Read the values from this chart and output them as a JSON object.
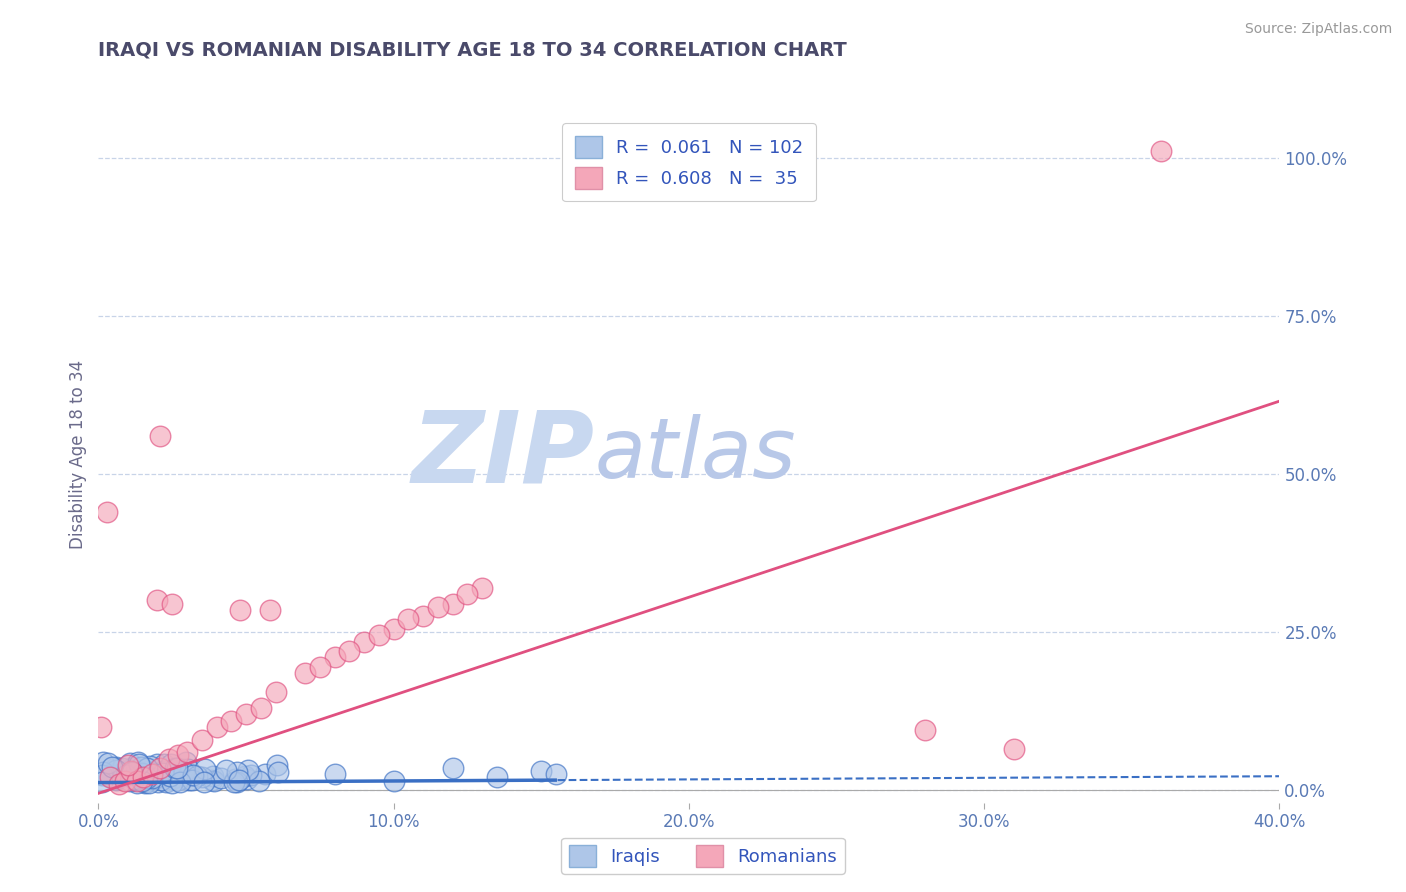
{
  "title": "IRAQI VS ROMANIAN DISABILITY AGE 18 TO 34 CORRELATION CHART",
  "source": "Source: ZipAtlas.com",
  "ylabel": "Disability Age 18 to 34",
  "xlim": [
    0.0,
    0.4
  ],
  "ylim": [
    -0.02,
    1.08
  ],
  "xticks": [
    0.0,
    0.1,
    0.2,
    0.3,
    0.4
  ],
  "xtick_labels": [
    "0.0%",
    "10.0%",
    "20.0%",
    "30.0%",
    "40.0%"
  ],
  "yticks": [
    0.0,
    0.25,
    0.5,
    0.75,
    1.0
  ],
  "ytick_labels": [
    "0.0%",
    "25.0%",
    "50.0%",
    "75.0%",
    "100.0%"
  ],
  "iraqi_R": 0.061,
  "iraqi_N": 102,
  "romanian_R": 0.608,
  "romanian_N": 35,
  "iraqi_color": "#aec6e8",
  "romanian_color": "#f4a7b9",
  "iraqi_line_color": "#3a6fc4",
  "romanian_line_color": "#e05080",
  "watermark_zip": "ZIP",
  "watermark_atlas": "atlas",
  "watermark_color_zip": "#c8d8f0",
  "watermark_color_atlas": "#b8c8e8",
  "background_color": "#ffffff",
  "grid_color": "#c8d4e8",
  "title_color": "#4a4a6a",
  "axis_label_color": "#6a6a8a",
  "tick_color": "#5a7ab5",
  "legend_text_color": "#3355bb",
  "iraqi_line_solid_end": 0.155,
  "romanian_line_slope": 1.55,
  "romanian_line_intercept": -0.005,
  "iraqi_line_slope": 0.025,
  "iraqi_line_intercept": 0.012
}
